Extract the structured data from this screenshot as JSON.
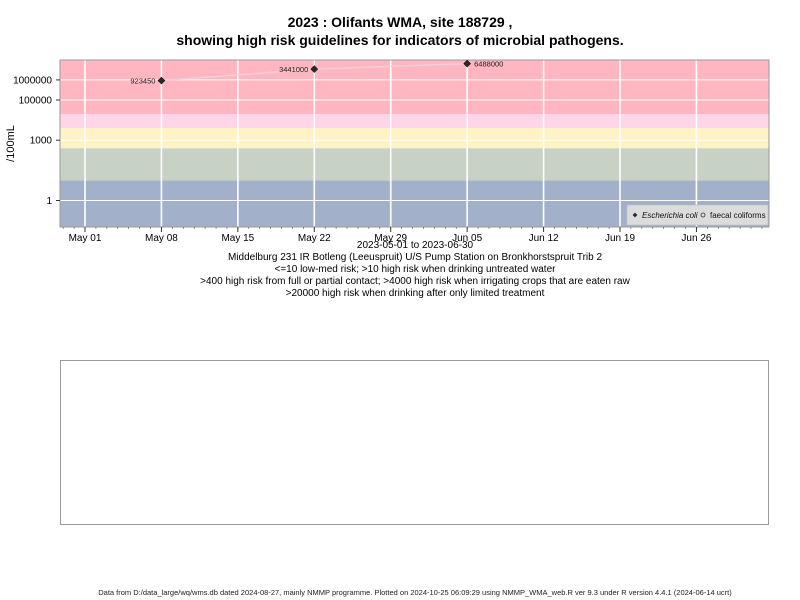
{
  "title_line1": "2023 : Olifants WMA, site 188729 ,",
  "title_line2": "showing high risk guidelines for indicators of microbial pathogens.",
  "captions": [
    "2023-05-01 to 2023-06-30",
    "Middelburg 231 IR Botleng (Leeuspruit) U/S Pump Station on Bronkhorstspruit Trib 2",
    "<=10 low-med risk; >10 high risk when drinking untreated water",
    ">400 high risk from full or partial contact; >4000 high risk when irrigating crops that are eaten raw",
    ">20000 high risk when drinking after only limited treatment"
  ],
  "footer": "Data from D:/data_large/wq/wms.db dated 2024-08-27, mainly NMMP programme. Plotted on 2024-10-25 06:09:29 using NMMP_WMA_web.R ver 9.3 under R version 4.4.1 (2024-06-14 ucrt)",
  "chart_data": {
    "type": "scatter",
    "ylabel": "/100mL",
    "y_scale": "log",
    "x_range": [
      "2023-04-26",
      "2023-07-04"
    ],
    "x_ticks": [
      {
        "date": "2023-05-01",
        "label": "May 01"
      },
      {
        "date": "2023-05-08",
        "label": "May 08"
      },
      {
        "date": "2023-05-15",
        "label": "May 15"
      },
      {
        "date": "2023-05-22",
        "label": "May 22"
      },
      {
        "date": "2023-05-29",
        "label": "May 29"
      },
      {
        "date": "2023-06-05",
        "label": "Jun 05"
      },
      {
        "date": "2023-06-12",
        "label": "Jun 12"
      },
      {
        "date": "2023-06-19",
        "label": "Jun 19"
      },
      {
        "date": "2023-06-26",
        "label": "Jun 26"
      }
    ],
    "y_ticks": [
      {
        "value": 1,
        "label": "1"
      },
      {
        "value": 1000,
        "label": "1000"
      },
      {
        "value": 100000,
        "label": "100000"
      },
      {
        "value": 1000000,
        "label": "1000000"
      }
    ],
    "bands": [
      {
        "from": 0.01,
        "to": 10,
        "color": "#a2b1c9"
      },
      {
        "from": 10,
        "to": 400,
        "color": "#c8d2c4"
      },
      {
        "from": 400,
        "to": 4000,
        "color": "#fff3c6"
      },
      {
        "from": 4000,
        "to": 20000,
        "color": "#ffd5e8"
      },
      {
        "from": 20000,
        "to": 50000000,
        "color": "#ffb6c1"
      }
    ],
    "series": [
      {
        "name": "Escherichia coli",
        "marker": "diamond",
        "line_color": "#f0d0d8",
        "points": [
          {
            "date": "2023-05-08",
            "value": 923450,
            "label": "923450",
            "label_side": "left"
          },
          {
            "date": "2023-05-22",
            "value": 3441000,
            "label": "3441000",
            "label_side": "left"
          },
          {
            "date": "2023-06-05",
            "value": 6488000,
            "label": "6488000",
            "label_side": "right"
          }
        ]
      }
    ],
    "legend": {
      "position": "bottom-right",
      "entries": [
        {
          "label": "Escherichia coli",
          "marker": "diamond",
          "italic": true
        },
        {
          "label": "faecal coliforms",
          "marker": "open-circle",
          "italic": false
        }
      ]
    },
    "grid": true
  }
}
